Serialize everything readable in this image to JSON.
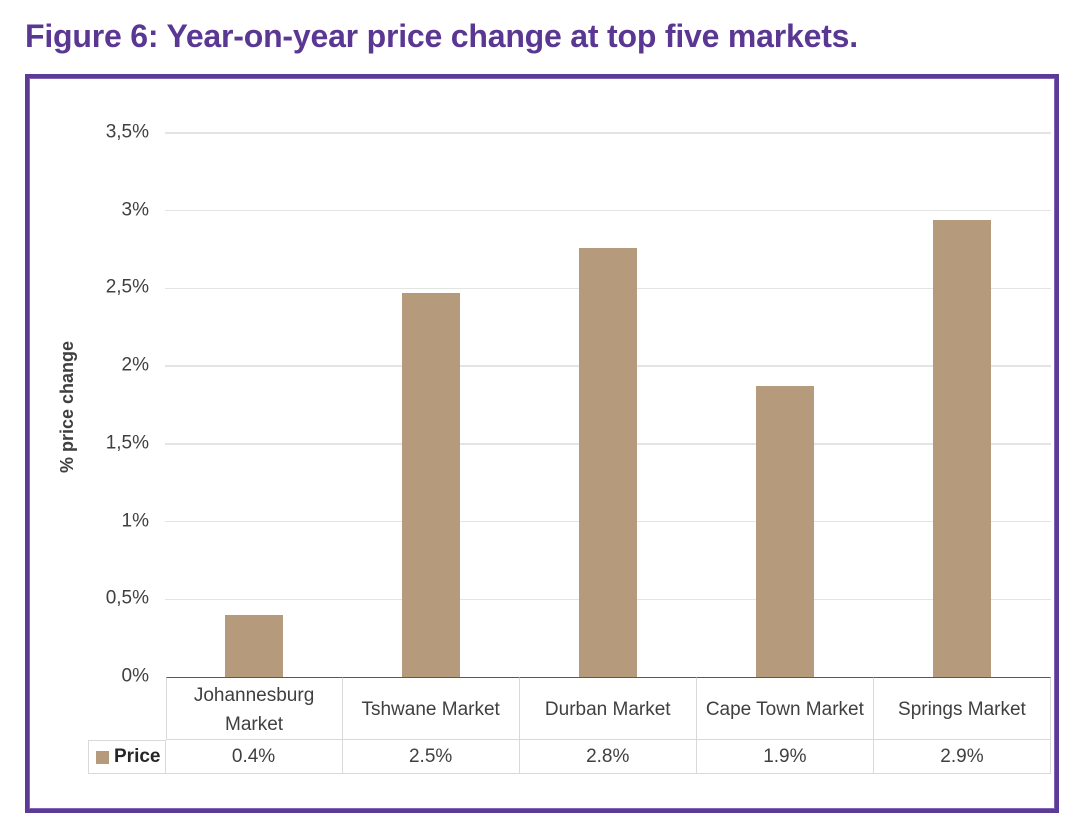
{
  "figure": {
    "title": "Figure 6: Year-on-year price change at top five markets.",
    "title_color": "#5B3794",
    "frame_border_color": "#5C3B97"
  },
  "chart_data": {
    "type": "bar",
    "title": "Figure 6: Year-on-year price change at top five markets.",
    "categories": [
      "Johannesburg Market",
      "Tshwane Market",
      "Durban Market",
      "Cape Town Market",
      "Springs Market"
    ],
    "series": [
      {
        "name": "Price",
        "values": [
          0.4,
          2.5,
          2.8,
          1.9,
          2.9
        ],
        "value_labels": [
          "0.4%",
          "2.5%",
          "2.8%",
          "1.9%",
          "2.9%"
        ],
        "plotted_values": [
          0.4,
          2.47,
          2.76,
          1.87,
          2.94
        ],
        "color": "#B59B7B"
      }
    ],
    "xlabel": "",
    "ylabel": "% price change",
    "ylim": [
      0,
      3.5
    ],
    "ytick_step": 0.5,
    "yticks": [
      "0%",
      "0,5%",
      "1%",
      "1,5%",
      "2%",
      "2,5%",
      "3%",
      "3,5%"
    ],
    "grid": true,
    "gridline_color": "#E4E4E4",
    "axis_line_color": "#595959",
    "table_border_color": "#D9D9D9",
    "text_color": "#404040",
    "legend_position": "data-table-left"
  }
}
